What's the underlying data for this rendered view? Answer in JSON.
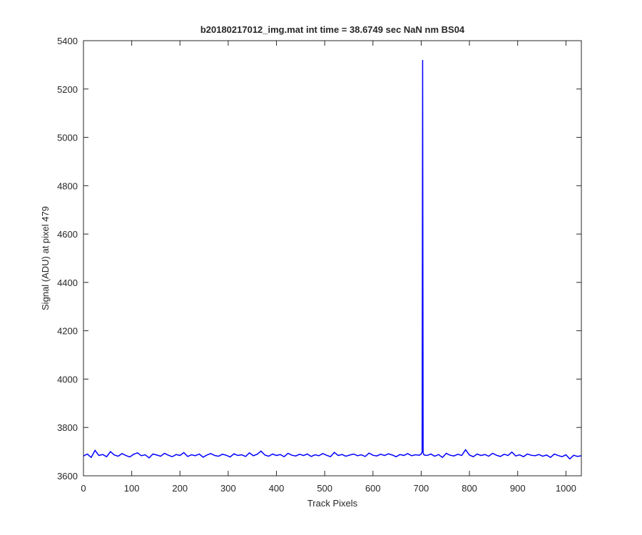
{
  "chart_data": {
    "type": "line",
    "title": "b20180217012_img.mat int time = 38.6749 sec  NaN nm BS04",
    "x_label": "Track Pixels",
    "y_label": "Signal (ADU) at pixel 479",
    "xlim": [
      0,
      1032
    ],
    "ylim": [
      3600,
      5400
    ],
    "xticks": [
      0,
      100,
      200,
      300,
      400,
      500,
      600,
      700,
      800,
      900,
      1000
    ],
    "yticks": [
      3600,
      3800,
      4000,
      4200,
      4400,
      4600,
      4800,
      5000,
      5200,
      5400
    ],
    "grid": false,
    "x": [
      0,
      8,
      16,
      24,
      32,
      40,
      48,
      56,
      64,
      72,
      80,
      88,
      96,
      104,
      112,
      120,
      128,
      136,
      144,
      152,
      160,
      168,
      176,
      184,
      192,
      200,
      208,
      216,
      224,
      232,
      240,
      248,
      256,
      264,
      272,
      280,
      288,
      296,
      304,
      312,
      320,
      328,
      336,
      344,
      352,
      360,
      368,
      376,
      384,
      392,
      400,
      408,
      416,
      424,
      432,
      440,
      448,
      456,
      464,
      472,
      480,
      488,
      496,
      504,
      512,
      520,
      528,
      536,
      544,
      552,
      560,
      568,
      576,
      584,
      592,
      600,
      608,
      616,
      624,
      632,
      640,
      648,
      656,
      664,
      672,
      680,
      688,
      696,
      700,
      702,
      703,
      704,
      706,
      712,
      720,
      728,
      736,
      744,
      752,
      760,
      768,
      776,
      784,
      792,
      800,
      808,
      816,
      824,
      832,
      840,
      848,
      856,
      864,
      872,
      880,
      888,
      896,
      904,
      912,
      920,
      928,
      936,
      944,
      952,
      960,
      968,
      976,
      984,
      992,
      1000,
      1008,
      1016,
      1024,
      1032
    ],
    "series": [
      {
        "name": "signal",
        "color": "#0000ff",
        "values": [
          3682,
          3690,
          3676,
          3705,
          3684,
          3688,
          3679,
          3700,
          3686,
          3681,
          3692,
          3684,
          3678,
          3689,
          3695,
          3683,
          3687,
          3674,
          3690,
          3686,
          3681,
          3693,
          3685,
          3679,
          3688,
          3684,
          3696,
          3680,
          3687,
          3683,
          3690,
          3677,
          3686,
          3692,
          3684,
          3681,
          3689,
          3685,
          3678,
          3691,
          3684,
          3687,
          3680,
          3695,
          3683,
          3689,
          3702,
          3686,
          3681,
          3690,
          3684,
          3688,
          3679,
          3693,
          3685,
          3682,
          3689,
          3684,
          3690,
          3680,
          3687,
          3683,
          3692,
          3685,
          3679,
          3697,
          3684,
          3688,
          3681,
          3686,
          3690,
          3683,
          3687,
          3680,
          3694,
          3685,
          3682,
          3689,
          3684,
          3691,
          3686,
          3679,
          3688,
          3684,
          3692,
          3683,
          3687,
          3685,
          3690,
          3700,
          5320,
          3695,
          3686,
          3684,
          3690,
          3681,
          3688,
          3676,
          3693,
          3685,
          3682,
          3689,
          3684,
          3708,
          3686,
          3679,
          3690,
          3684,
          3688,
          3681,
          3693,
          3685,
          3680,
          3689,
          3684,
          3698,
          3682,
          3687,
          3679,
          3690,
          3685,
          3683,
          3688,
          3681,
          3686,
          3676,
          3690,
          3684,
          3679,
          3687,
          3670,
          3685,
          3680,
          3683
        ]
      }
    ]
  }
}
